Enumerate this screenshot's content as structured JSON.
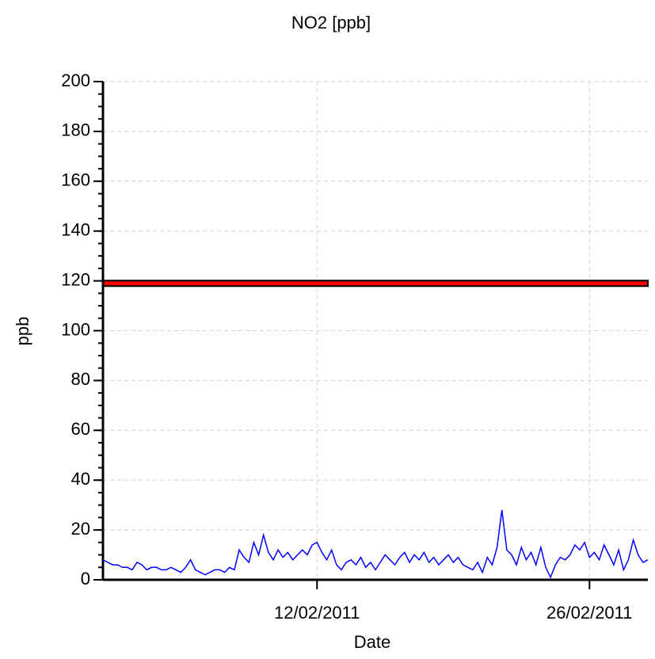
{
  "chart_data": {
    "type": "line",
    "title": "NO2 [ppb]",
    "x_label": "Date",
    "y_label": "ppb",
    "xlim": [
      "2011-02-01",
      "2011-03-01"
    ],
    "xticks": [
      {
        "value": "2011-02-12",
        "label": "12/02/2011"
      },
      {
        "value": "2011-02-26",
        "label": "26/02/2011"
      }
    ],
    "ylim": [
      0,
      200
    ],
    "yticks": [
      0,
      20,
      40,
      60,
      80,
      100,
      120,
      140,
      160,
      180,
      200
    ],
    "yminor_step": 5,
    "grid": true,
    "hline": {
      "value": 119,
      "color": "#ff0000"
    },
    "series": [
      {
        "color": "#0000ff",
        "x": [
          "2011-02-01T00:00",
          "2011-02-01T06:00",
          "2011-02-01T12:00",
          "2011-02-01T18:00",
          "2011-02-02T00:00",
          "2011-02-02T06:00",
          "2011-02-02T12:00",
          "2011-02-02T18:00",
          "2011-02-03T00:00",
          "2011-02-03T06:00",
          "2011-02-03T12:00",
          "2011-02-03T18:00",
          "2011-02-04T00:00",
          "2011-02-04T06:00",
          "2011-02-04T12:00",
          "2011-02-04T18:00",
          "2011-02-05T00:00",
          "2011-02-05T06:00",
          "2011-02-05T12:00",
          "2011-02-05T18:00",
          "2011-02-06T00:00",
          "2011-02-06T06:00",
          "2011-02-06T12:00",
          "2011-02-06T18:00",
          "2011-02-07T00:00",
          "2011-02-07T06:00",
          "2011-02-07T12:00",
          "2011-02-07T18:00",
          "2011-02-08T00:00",
          "2011-02-08T06:00",
          "2011-02-08T12:00",
          "2011-02-08T18:00",
          "2011-02-09T00:00",
          "2011-02-09T06:00",
          "2011-02-09T12:00",
          "2011-02-09T18:00",
          "2011-02-10T00:00",
          "2011-02-10T06:00",
          "2011-02-10T12:00",
          "2011-02-10T18:00",
          "2011-02-11T00:00",
          "2011-02-11T06:00",
          "2011-02-11T12:00",
          "2011-02-11T18:00",
          "2011-02-12T00:00",
          "2011-02-12T06:00",
          "2011-02-12T12:00",
          "2011-02-12T18:00",
          "2011-02-13T00:00",
          "2011-02-13T06:00",
          "2011-02-13T12:00",
          "2011-02-13T18:00",
          "2011-02-14T00:00",
          "2011-02-14T06:00",
          "2011-02-14T12:00",
          "2011-02-14T18:00",
          "2011-02-15T00:00",
          "2011-02-15T06:00",
          "2011-02-15T12:00",
          "2011-02-15T18:00",
          "2011-02-16T00:00",
          "2011-02-16T06:00",
          "2011-02-16T12:00",
          "2011-02-16T18:00",
          "2011-02-17T00:00",
          "2011-02-17T06:00",
          "2011-02-17T12:00",
          "2011-02-17T18:00",
          "2011-02-18T00:00",
          "2011-02-18T06:00",
          "2011-02-18T12:00",
          "2011-02-18T18:00",
          "2011-02-19T00:00",
          "2011-02-19T06:00",
          "2011-02-19T12:00",
          "2011-02-19T18:00",
          "2011-02-20T00:00",
          "2011-02-20T06:00",
          "2011-02-20T12:00",
          "2011-02-20T18:00",
          "2011-02-21T00:00",
          "2011-02-21T06:00",
          "2011-02-21T12:00",
          "2011-02-21T18:00",
          "2011-02-22T00:00",
          "2011-02-22T06:00",
          "2011-02-22T12:00",
          "2011-02-22T18:00",
          "2011-02-23T00:00",
          "2011-02-23T06:00",
          "2011-02-23T12:00",
          "2011-02-23T18:00",
          "2011-02-24T00:00",
          "2011-02-24T06:00",
          "2011-02-24T12:00",
          "2011-02-24T18:00",
          "2011-02-25T00:00",
          "2011-02-25T06:00",
          "2011-02-25T12:00",
          "2011-02-25T18:00",
          "2011-02-26T00:00",
          "2011-02-26T06:00",
          "2011-02-26T12:00",
          "2011-02-26T18:00",
          "2011-02-27T00:00",
          "2011-02-27T06:00",
          "2011-02-27T12:00",
          "2011-02-27T18:00",
          "2011-02-28T00:00",
          "2011-02-28T06:00",
          "2011-02-28T12:00",
          "2011-02-28T18:00",
          "2011-03-01T00:00"
        ],
        "values": [
          8,
          7,
          6,
          6,
          5,
          5,
          4,
          7,
          6,
          4,
          5,
          5,
          4,
          4,
          5,
          4,
          3,
          5,
          8,
          4,
          3,
          2,
          3,
          4,
          4,
          3,
          5,
          4,
          12,
          9,
          7,
          15,
          10,
          18,
          11,
          8,
          12,
          9,
          11,
          8,
          10,
          12,
          10,
          14,
          15,
          11,
          8,
          12,
          6,
          4,
          7,
          8,
          6,
          9,
          5,
          7,
          4,
          7,
          10,
          8,
          6,
          9,
          11,
          7,
          10,
          8,
          11,
          7,
          9,
          6,
          8,
          10,
          7,
          9,
          6,
          5,
          4,
          7,
          3,
          9,
          6,
          13,
          28,
          12,
          10,
          6,
          13,
          8,
          11,
          6,
          13,
          5,
          1,
          6,
          9,
          8,
          10,
          14,
          12,
          15,
          9,
          11,
          8,
          14,
          10,
          6,
          12,
          4,
          8,
          16,
          10,
          7,
          8
        ]
      }
    ]
  }
}
